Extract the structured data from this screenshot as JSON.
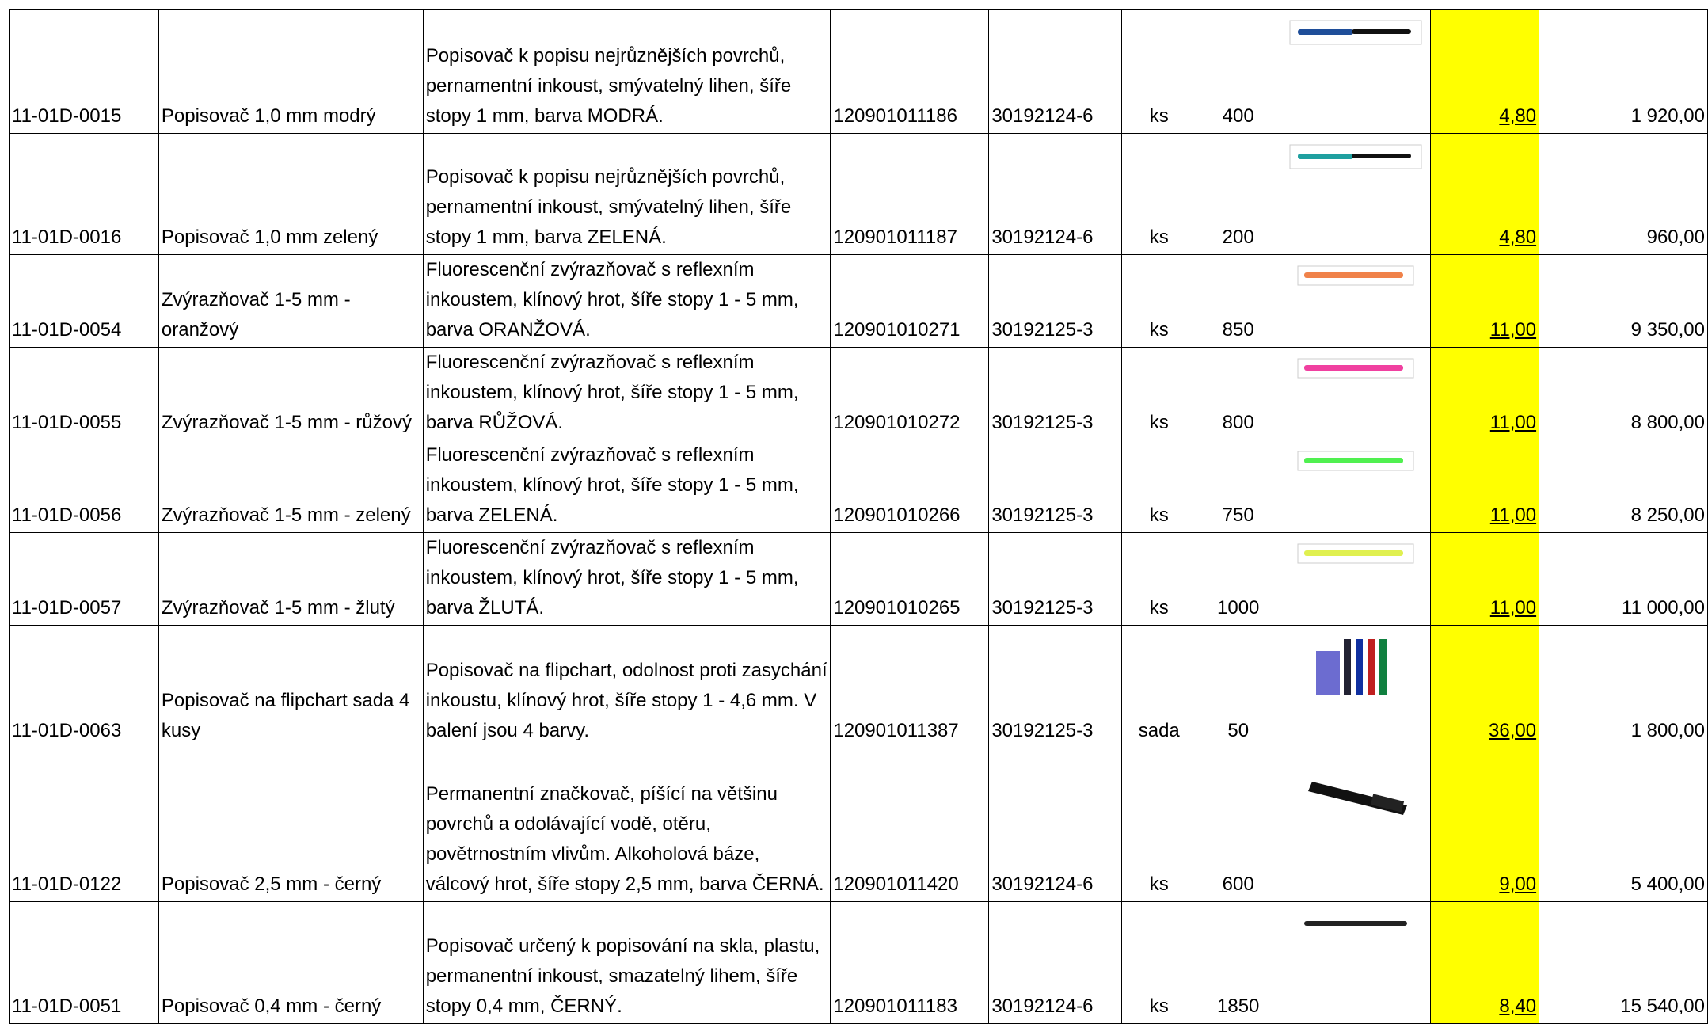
{
  "table": {
    "rows": [
      [
        "11-01D-0015",
        "Popisovač 1,0 mm modrý",
        "Popisovač k popisu nejrůznějších povrchů, pernamentní inkoust, smývatelný lihen, šíře stopy 1 mm, barva MODRÁ.",
        "120901011186",
        "30192124-6",
        "ks",
        "400",
        "4,80",
        "1 920,00"
      ],
      [
        "11-01D-0016",
        "Popisovač 1,0 mm zelený",
        "Popisovač k popisu nejrůznějších povrchů, pernamentní inkoust, smývatelný lihen, šíře stopy 1 mm, barva ZELENÁ.",
        "120901011187",
        "30192124-6",
        "ks",
        "200",
        "4,80",
        "960,00"
      ],
      [
        "11-01D-0054",
        "Zvýrazňovač 1-5 mm - oranžový",
        "Fluorescenční zvýrazňovač s reflexním inkoustem, klínový hrot, šíře stopy 1 - 5 mm, barva ORANŽOVÁ.",
        "120901010271",
        "30192125-3",
        "ks",
        "850",
        "11,00",
        "9 350,00"
      ],
      [
        "11-01D-0055",
        "Zvýrazňovač 1-5 mm - růžový",
        "Fluorescenční zvýrazňovač s reflexním inkoustem, klínový hrot, šíře stopy 1 - 5 mm, barva RŮŽOVÁ.",
        "120901010272",
        "30192125-3",
        "ks",
        "800",
        "11,00",
        "8 800,00"
      ],
      [
        "11-01D-0056",
        "Zvýrazňovač 1-5 mm - zelený",
        "Fluorescenční zvýrazňovač s reflexním inkoustem, klínový hrot, šíře stopy 1 - 5 mm, barva ZELENÁ.",
        "120901010266",
        "30192125-3",
        "ks",
        "750",
        "11,00",
        "8 250,00"
      ],
      [
        "11-01D-0057",
        "Zvýrazňovač 1-5 mm - žlutý",
        "Fluorescenční zvýrazňovač s reflexním inkoustem, klínový hrot, šíře stopy 1 - 5 mm, barva ŽLUTÁ.",
        "120901010265",
        "30192125-3",
        "ks",
        "1000",
        "11,00",
        "11 000,00"
      ],
      [
        "11-01D-0063",
        "Popisovač na flipchart sada 4 kusy",
        "Popisovač na flipchart, odolnost proti zasychání inkoustu, klínový hrot, šíře stopy 1 - 4,6 mm. V balení jsou 4 barvy.",
        "120901011387",
        "30192125-3",
        "sada",
        "50",
        "36,00",
        "1 800,00"
      ],
      [
        "11-01D-0122",
        "Popisovač 2,5 mm - černý",
        "Permanentní značkovač, píšící na většinu povrchů a odolávající vodě, otěru, povětrnostním vlivům. Alkoholová báze, válcový hrot, šíře stopy 2,5 mm, barva ČERNÁ.",
        "120901011420",
        "30192124-6",
        "ks",
        "600",
        "9,00",
        "5 400,00"
      ],
      [
        "11-01D-0051",
        "Popisovač 0,4 mm - černý",
        "Popisovač určený k popisování na skla, plastu, permanentní inkoust, smazatelný lihem, šíře stopy 0,4 mm, ČERNÝ.",
        "120901011183",
        "30192124-6",
        "ks",
        "1850",
        "8,40",
        "15 540,00"
      ]
    ]
  }
}
